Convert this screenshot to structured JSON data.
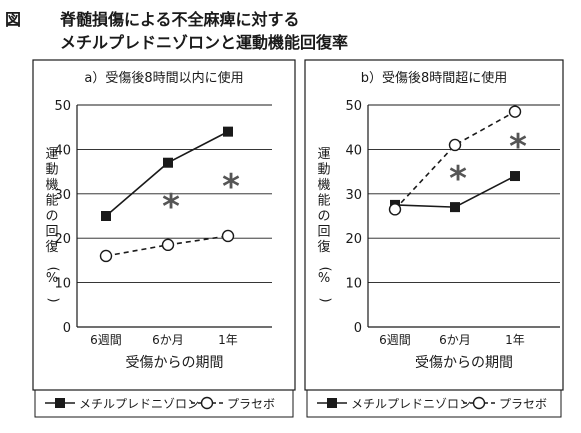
{
  "figure": {
    "label": "図",
    "title_line1": "脊髄損傷による不全麻痺に対する",
    "title_line2": "メチルプレドニゾロンと運動機能回復率"
  },
  "chart_data": [
    {
      "type": "line",
      "title": "a）受傷後8時間以内に使用",
      "xlabel": "受傷からの期間",
      "ylabel": "運動機能の回復（%）",
      "categories": [
        "6週間",
        "6か月",
        "1年"
      ],
      "ylim": [
        0,
        50
      ],
      "yticks": [
        0,
        10,
        20,
        30,
        40,
        50
      ],
      "grid": true,
      "series": [
        {
          "name": "メチルプレドニゾロン",
          "marker": "filled-square",
          "line": "solid",
          "values": [
            25,
            37,
            44
          ]
        },
        {
          "name": "プラセボ",
          "marker": "open-circle",
          "line": "dashed",
          "values": [
            16,
            18.5,
            20.5
          ]
        }
      ],
      "annotations": [
        {
          "text": "*",
          "category_index": 1
        },
        {
          "text": "*",
          "category_index": 2
        }
      ],
      "legend_placement": "bottom"
    },
    {
      "type": "line",
      "title": "b）受傷後8時間超に使用",
      "xlabel": "受傷からの期間",
      "ylabel": "運動機能の回復（%）",
      "categories": [
        "6週間",
        "6か月",
        "1年"
      ],
      "ylim": [
        0,
        50
      ],
      "yticks": [
        0,
        10,
        20,
        30,
        40,
        50
      ],
      "grid": true,
      "series": [
        {
          "name": "メチルプレドニゾロン",
          "marker": "filled-square",
          "line": "solid",
          "values": [
            27.5,
            27,
            34
          ]
        },
        {
          "name": "プラセボ",
          "marker": "open-circle",
          "line": "dashed",
          "values": [
            26.5,
            41,
            48.5
          ]
        }
      ],
      "annotations": [
        {
          "text": "*",
          "category_index": 1
        },
        {
          "text": "*",
          "category_index": 2
        }
      ],
      "legend_placement": "bottom"
    }
  ],
  "colors": {
    "ink": "#1a1a1a",
    "asterisk": "#555555",
    "background": "#ffffff"
  }
}
